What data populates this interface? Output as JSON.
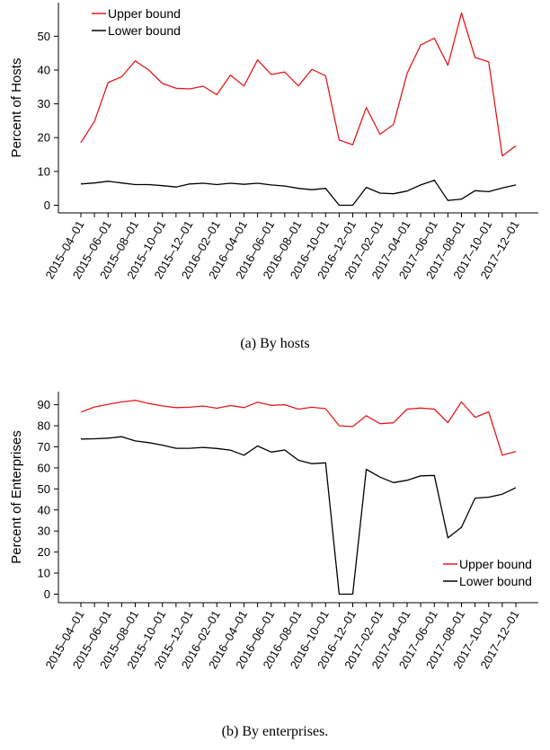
{
  "chart_data": [
    {
      "type": "line",
      "ylabel": "Percent of Hosts",
      "xlabel": "",
      "ylim": [
        0,
        57
      ],
      "yticks": [
        0,
        10,
        20,
        30,
        40,
        50
      ],
      "x": [
        "2015-04",
        "2015-05",
        "2015-06",
        "2015-07",
        "2015-08",
        "2015-09",
        "2015-10",
        "2015-11",
        "2015-12",
        "2016-01",
        "2016-02",
        "2016-03",
        "2016-04",
        "2016-05",
        "2016-06",
        "2016-07",
        "2016-08",
        "2016-09",
        "2016-10",
        "2016-11",
        "2016-12",
        "2017-01",
        "2017-02",
        "2017-03",
        "2017-04",
        "2017-05",
        "2017-06",
        "2017-07",
        "2017-08",
        "2017-09",
        "2017-10",
        "2017-11",
        "2017-12"
      ],
      "tick_labels": [
        "2015–04–01",
        "2015–06–01",
        "2015–08–01",
        "2015–10–01",
        "2015–12–01",
        "2016–02–01",
        "2016–04–01",
        "2016–06–01",
        "2016–08–01",
        "2016–10–01",
        "2016–12–01",
        "2017–02–01",
        "2017–04–01",
        "2017–06–01",
        "2017–08–01",
        "2017–10–01",
        "2017–12–01"
      ],
      "legend_position": "top-left",
      "series": [
        {
          "name": "Upper bound",
          "color": "#e41a1c",
          "values": [
            18.5,
            24.8,
            36.3,
            38,
            42.7,
            40,
            36,
            34.6,
            34.4,
            35.2,
            32.7,
            38.5,
            35.3,
            43,
            38.7,
            39.4,
            35.3,
            40.2,
            38.3,
            19.3,
            17.9,
            28.9,
            21,
            23.9,
            39,
            47.4,
            49.4,
            41.4,
            56.9,
            43.7,
            42.4,
            14.6,
            17.6
          ]
        },
        {
          "name": "Lower bound",
          "color": "#000000",
          "values": [
            6.3,
            6.6,
            7.1,
            6.6,
            6.1,
            6.1,
            5.8,
            5.4,
            6.3,
            6.5,
            6.1,
            6.5,
            6.2,
            6.5,
            6.0,
            5.7,
            5.0,
            4.6,
            5.0,
            0,
            0,
            5.3,
            3.6,
            3.4,
            4.2,
            6.0,
            7.4,
            1.4,
            1.8,
            4.3,
            4.0,
            5.1,
            6.0
          ]
        }
      ]
    },
    {
      "type": "line",
      "ylabel": "Percent of Enterprises",
      "xlabel": "",
      "ylim": [
        0,
        96
      ],
      "yticks": [
        0,
        10,
        20,
        30,
        40,
        50,
        60,
        70,
        80,
        90
      ],
      "x": [
        "2015-04",
        "2015-05",
        "2015-06",
        "2015-07",
        "2015-08",
        "2015-09",
        "2015-10",
        "2015-11",
        "2015-12",
        "2016-01",
        "2016-02",
        "2016-03",
        "2016-04",
        "2016-05",
        "2016-06",
        "2016-07",
        "2016-08",
        "2016-09",
        "2016-10",
        "2016-11",
        "2016-12",
        "2017-01",
        "2017-02",
        "2017-03",
        "2017-04",
        "2017-05",
        "2017-06",
        "2017-07",
        "2017-08",
        "2017-09",
        "2017-10",
        "2017-11",
        "2017-12"
      ],
      "tick_labels": [
        "2015–04–01",
        "2015–06–01",
        "2015–08–01",
        "2015–10–01",
        "2015–12–01",
        "2016–02–01",
        "2016–04–01",
        "2016–06–01",
        "2016–08–01",
        "2016–10–01",
        "2016–12–01",
        "2017–02–01",
        "2017–04–01",
        "2017–06–01",
        "2017–08–01",
        "2017–10–01",
        "2017–12–01"
      ],
      "legend_position": "right",
      "series": [
        {
          "name": "Upper bound",
          "color": "#e41a1c",
          "values": [
            86.5,
            88.9,
            90.2,
            91.3,
            92.1,
            90.6,
            89.4,
            88.6,
            88.8,
            89.4,
            88.3,
            89.6,
            88.6,
            91.2,
            89.7,
            90.0,
            87.9,
            88.8,
            88.1,
            80.0,
            79.6,
            84.8,
            81.0,
            81.4,
            87.9,
            88.4,
            87.9,
            81.5,
            91.3,
            84.0,
            86.6,
            66.0,
            67.7
          ]
        },
        {
          "name": "Lower bound",
          "color": "#000000",
          "values": [
            73.7,
            73.8,
            74.1,
            74.8,
            72.8,
            72.0,
            70.8,
            69.3,
            69.3,
            69.7,
            69.2,
            68.4,
            66.0,
            70.4,
            67.5,
            68.5,
            63.6,
            62.0,
            62.4,
            0,
            0,
            59.3,
            55.6,
            53.0,
            54.1,
            56.2,
            56.4,
            26.7,
            31.8,
            45.6,
            46.1,
            47.5,
            50.6
          ]
        }
      ]
    }
  ],
  "captions": {
    "a": "(a) By hosts",
    "b": "(b) By enterprises."
  }
}
